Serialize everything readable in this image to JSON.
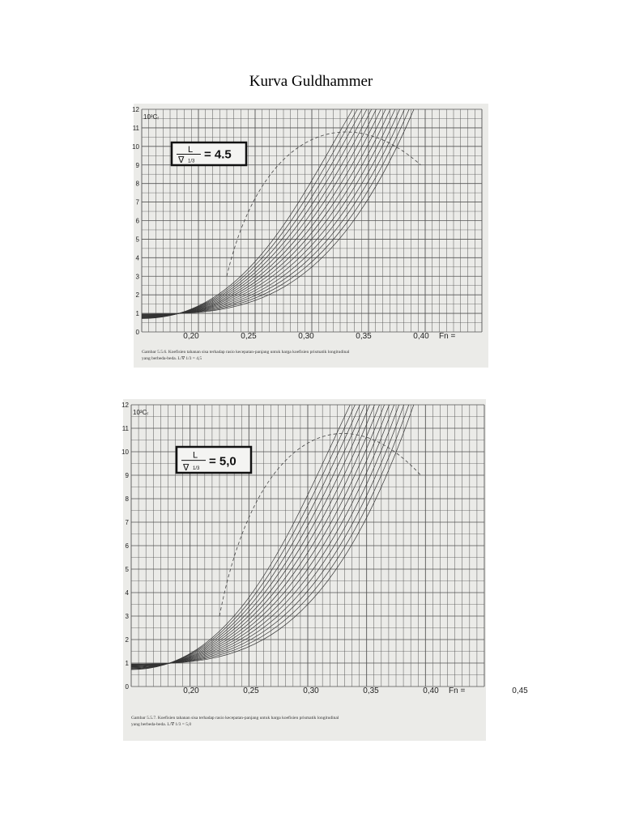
{
  "title": "Kurva Guldhammer",
  "figures": [
    {
      "ratio_label": {
        "numerator": "L",
        "denominator": "∇",
        "exponent": "1/3",
        "value": "= 4.5"
      },
      "y_tick_labels": [
        "0",
        "1",
        "2",
        "3",
        "4",
        "5",
        "6",
        "7",
        "8",
        "9",
        "10",
        "11",
        "12"
      ],
      "y_axis_label": "10³Cᵣ",
      "x_tick_labels": [
        "0,20",
        "0,25",
        "0,30",
        "0,35",
        "0,40"
      ],
      "x_axis_label": "Fn =",
      "caption": [
        "Gambar 5.5.6.  Koefisien tahanan sisa terhadap rasio kecepatan-panjang untuk harga koefisien prismatik longitudinal",
        "yang berbeda-beda.  L/∇ 1/3 = 4,5"
      ]
    },
    {
      "ratio_label": {
        "numerator": "L",
        "denominator": "∇",
        "exponent": "1/3",
        "value": "= 5,0"
      },
      "y_tick_labels": [
        "0",
        "1",
        "2",
        "3",
        "4",
        "5",
        "6",
        "7",
        "8",
        "9",
        "10",
        "11",
        "12"
      ],
      "y_axis_label": "10³Cᵣ",
      "x_tick_labels": [
        "0,20",
        "0,25",
        "0,30",
        "0,35",
        "0,40",
        "0,45"
      ],
      "x_axis_label": "Fn =",
      "caption": [
        "Gambar 5.5.7.  Koefisien tahanan sisa terhadap rasio kecepatan-panjang untuk harga koefisien prismatik longitudinal",
        "yang berbeda-beda.  L/∇ 1/3 = 5,0"
      ]
    }
  ]
}
